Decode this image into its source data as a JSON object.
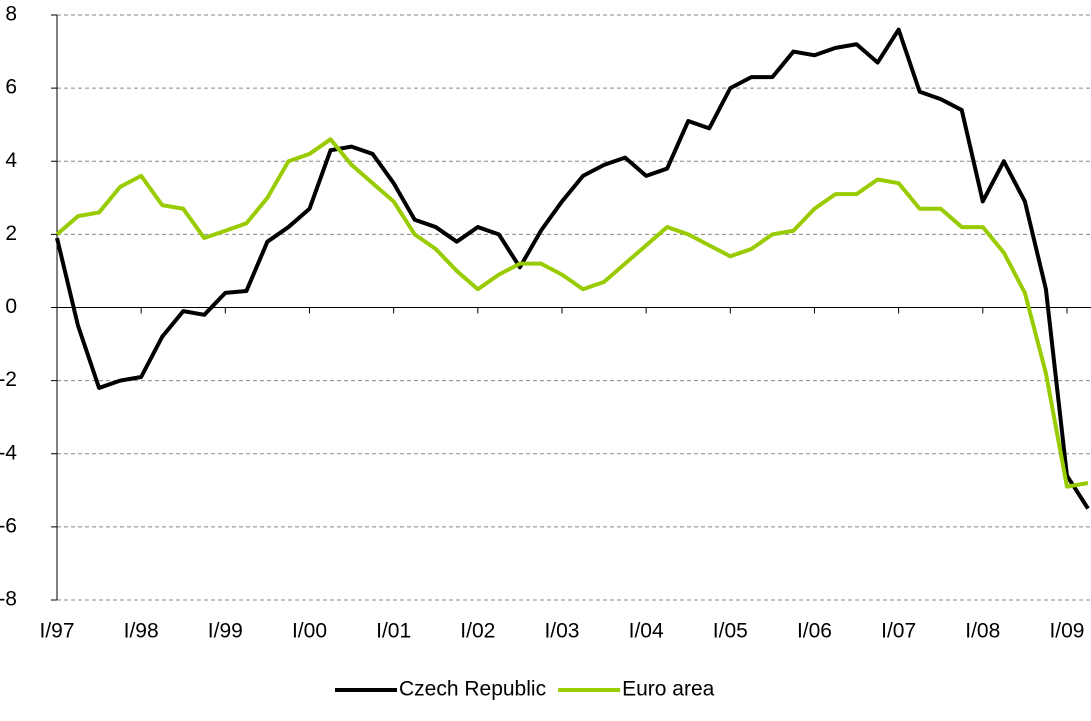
{
  "chart_data": {
    "type": "line",
    "categories": [
      "I/97",
      null,
      null,
      null,
      "I/98",
      null,
      null,
      null,
      "I/99",
      null,
      null,
      null,
      "I/00",
      null,
      null,
      null,
      "I/01",
      null,
      null,
      null,
      "I/02",
      null,
      null,
      null,
      "I/03",
      null,
      null,
      null,
      "I/04",
      null,
      null,
      null,
      "I/05",
      null,
      null,
      null,
      "I/06",
      null,
      null,
      null,
      "I/07",
      null,
      null,
      null,
      "I/08",
      null,
      null,
      null,
      "I/09",
      null
    ],
    "series": [
      {
        "name": "Czech Republic",
        "color": "#000000",
        "values": [
          1.9,
          -0.5,
          -2.2,
          -2.0,
          -1.9,
          -0.8,
          -0.1,
          -0.2,
          0.4,
          0.45,
          1.8,
          2.2,
          2.7,
          4.3,
          4.4,
          4.2,
          3.4,
          2.4,
          2.2,
          1.8,
          2.2,
          2.0,
          1.1,
          2.1,
          2.9,
          3.6,
          3.9,
          4.1,
          3.6,
          3.8,
          5.1,
          4.9,
          6.0,
          6.3,
          6.3,
          7.0,
          6.9,
          7.1,
          7.2,
          6.7,
          7.6,
          5.9,
          5.7,
          5.4,
          2.9,
          4.0,
          2.9,
          0.5,
          -4.6,
          -5.5
        ]
      },
      {
        "name": "Euro area",
        "color": "#99cc00",
        "values": [
          2.0,
          2.5,
          2.6,
          3.3,
          3.6,
          2.8,
          2.7,
          1.9,
          2.1,
          2.3,
          3.0,
          4.0,
          4.2,
          4.6,
          3.9,
          3.4,
          2.9,
          2.0,
          1.6,
          1.0,
          0.5,
          0.9,
          1.2,
          1.2,
          0.9,
          0.5,
          0.7,
          1.2,
          1.7,
          2.2,
          2.0,
          1.7,
          1.4,
          1.6,
          2.0,
          2.1,
          2.7,
          3.1,
          3.1,
          3.5,
          3.4,
          2.7,
          2.7,
          2.2,
          2.2,
          1.5,
          0.4,
          -1.8,
          -4.9,
          -4.8
        ]
      }
    ],
    "ylim": [
      -8,
      8
    ],
    "yticks": [
      -8,
      -6,
      -4,
      -2,
      0,
      2,
      4,
      6,
      8
    ],
    "grid": true,
    "legend": "bottom"
  }
}
